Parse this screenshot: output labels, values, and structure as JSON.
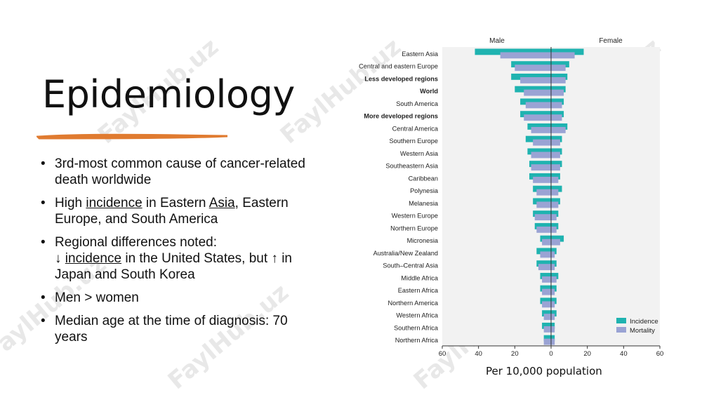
{
  "slide": {
    "title": "Epidemiology",
    "accent_color": "#e07b30",
    "bullets": [
      {
        "text": "3rd-most common cause of cancer-related death worldwide"
      },
      {
        "pre": "High ",
        "u1": "incidence",
        "mid": " in Eastern ",
        "u2": "Asia",
        "post": ", Eastern Europe, and South America"
      },
      {
        "line1": "Regional differences noted:",
        "arrow_down": "↓ ",
        "u": "incidence",
        "post": " in the United States, but ↑ in Japan and South Korea"
      },
      {
        "text": "Men > women"
      },
      {
        "text": "Median age at the time of diagnosis: 70 years"
      }
    ],
    "watermark": "FaylHub.uz"
  },
  "chart_data": {
    "type": "bar",
    "orientation": "horizontal-butterfly",
    "left_header": "Male",
    "right_header": "Female",
    "xlabel": "Per 10,000 population",
    "xlim": [
      -60,
      60
    ],
    "xticks": [
      "60",
      "40",
      "20",
      "0",
      "20",
      "40",
      "60"
    ],
    "legend_position": "bottom-right",
    "categories": [
      "Eastern Asia",
      "Central and eastern Europe",
      "Less developed regions",
      "World",
      "South America",
      "More developed regions",
      "Central America",
      "Southern Europe",
      "Western Asia",
      "Southeastern Asia",
      "Caribbean",
      "Polynesia",
      "Melanesia",
      "Western Europe",
      "Northern Europe",
      "Micronesia",
      "Australia/New Zealand",
      "South–Central Asia",
      "Middle Africa",
      "Eastern Africa",
      "Northern America",
      "Western Africa",
      "Southern Africa",
      "Northern Africa"
    ],
    "bold_categories": [
      "Less developed regions",
      "World",
      "More developed regions"
    ],
    "series": [
      {
        "name": "Incidence",
        "color": "#1fb3b0",
        "male": [
          42,
          22,
          22,
          20,
          17,
          17,
          13,
          14,
          13,
          12,
          12,
          10,
          10,
          10,
          9,
          6,
          8,
          8,
          6,
          6,
          6,
          5,
          5,
          4
        ],
        "female": [
          18,
          10,
          9,
          8,
          7,
          7,
          9,
          6,
          6,
          6,
          5,
          6,
          5,
          4,
          4,
          7,
          3,
          3,
          4,
          3,
          3,
          3,
          2,
          2
        ]
      },
      {
        "name": "Mortality",
        "color": "#9aa3d4",
        "male": [
          28,
          20,
          17,
          15,
          14,
          15,
          11,
          10,
          11,
          11,
          10,
          8,
          8,
          9,
          8,
          5,
          6,
          7,
          5,
          5,
          5,
          4,
          4,
          4
        ],
        "female": [
          13,
          8,
          8,
          7,
          6,
          6,
          8,
          5,
          5,
          5,
          4,
          4,
          4,
          3,
          3,
          5,
          2,
          2,
          3,
          2,
          2,
          2,
          2,
          2
        ]
      }
    ]
  }
}
